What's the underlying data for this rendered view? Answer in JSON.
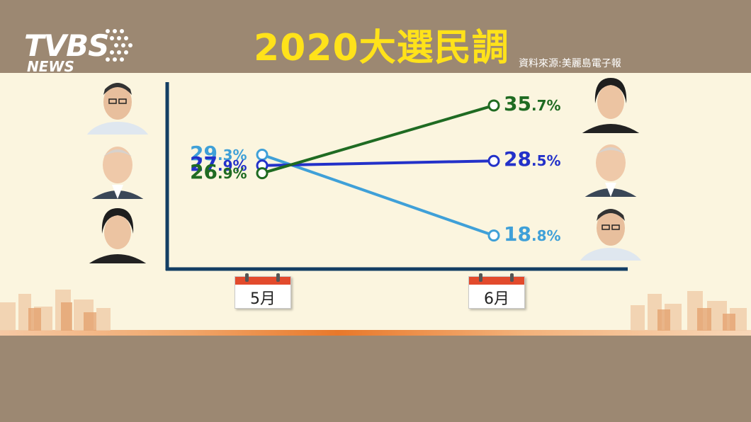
{
  "header": {
    "logo_main": "TVBS",
    "logo_sub": "NEWS",
    "title": "2020大選民調",
    "source": "資料來源:美麗島電子報"
  },
  "chart_data": {
    "type": "line",
    "title": "2020大選民調",
    "categories": [
      "5月",
      "6月"
    ],
    "unit": "%",
    "series": [
      {
        "color": "#3fa0d8",
        "values": [
          29.3,
          18.8
        ],
        "labels": [
          [
            "29",
            ".3%"
          ],
          [
            "18",
            ".8%"
          ]
        ]
      },
      {
        "color": "#2331c9",
        "values": [
          27.9,
          28.5
        ],
        "labels": [
          [
            "27",
            ".9%"
          ],
          [
            "28",
            ".5%"
          ]
        ]
      },
      {
        "color": "#1f6b22",
        "values": [
          26.9,
          35.7
        ],
        "labels": [
          [
            "26",
            ".9%"
          ],
          [
            "35",
            ".7%"
          ]
        ]
      }
    ],
    "axis_color": "#133e63"
  },
  "portraits": {
    "left": [
      "person-icon",
      "person-icon",
      "person-icon"
    ],
    "right": [
      "person-icon",
      "person-icon",
      "person-icon"
    ]
  }
}
